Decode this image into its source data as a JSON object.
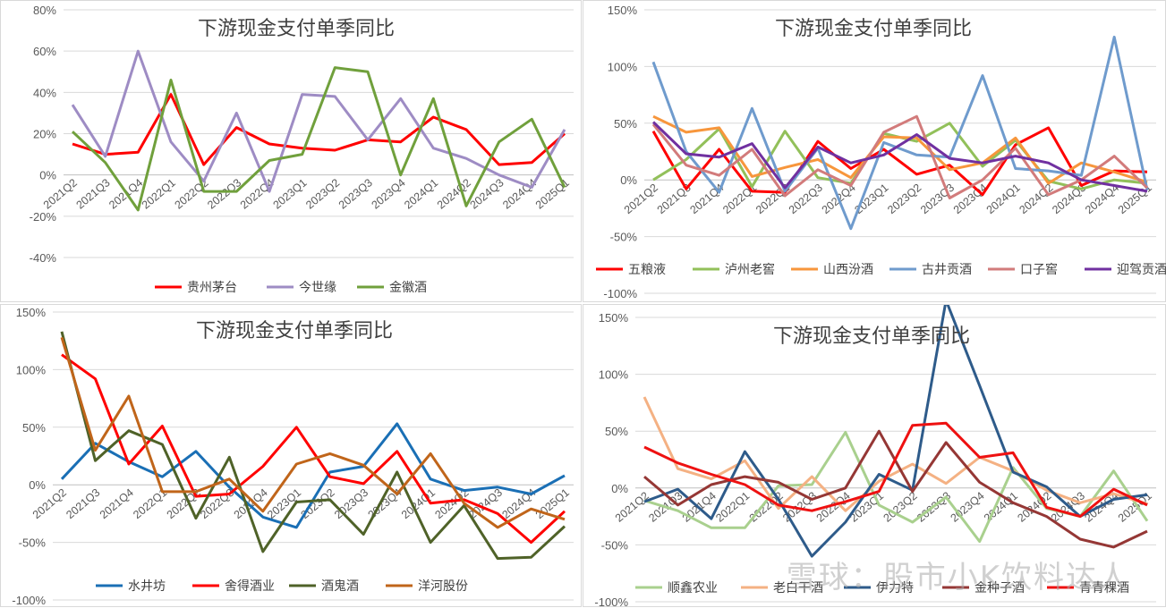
{
  "watermark": "雪球：股市小K饮料达人",
  "chart_data": [
    {
      "type": "line",
      "title": "下游现金支付单季同比",
      "categories": [
        "2021Q2",
        "2021Q3",
        "2021Q4",
        "2022Q1",
        "2022Q2",
        "2022Q3",
        "2022Q4",
        "2023Q1",
        "2023Q2",
        "2023Q3",
        "2023Q4",
        "2024Q1",
        "2024Q2",
        "2024Q3",
        "2024Q4",
        "2025Q1"
      ],
      "ylim": [
        -40,
        80
      ],
      "yticks": [
        -40,
        -20,
        0,
        20,
        40,
        60,
        80
      ],
      "grid": true,
      "legend_position": "bottom",
      "series": [
        {
          "name": "贵州茅台",
          "color": "#ff0000",
          "values": [
            15,
            10,
            11,
            39,
            5,
            23,
            15,
            13,
            12,
            17,
            16,
            28,
            22,
            5,
            6,
            20
          ]
        },
        {
          "name": "今世缘",
          "color": "#9e8cc4",
          "values": [
            34,
            9,
            60,
            16,
            -3,
            30,
            -8,
            39,
            38,
            17,
            37,
            13,
            8,
            0,
            -6,
            22
          ]
        },
        {
          "name": "金徽酒",
          "color": "#70a03c",
          "values": [
            21,
            6,
            -17,
            46,
            -8,
            -8,
            7,
            10,
            52,
            50,
            0,
            37,
            -15,
            16,
            27,
            -6
          ]
        }
      ]
    },
    {
      "type": "line",
      "title": "下游现金支付单季同比",
      "categories": [
        "2021Q2",
        "2021Q3",
        "2021Q4",
        "2022Q1",
        "2022Q2",
        "2022Q3",
        "2022Q4",
        "2023Q1",
        "2023Q2",
        "2023Q3",
        "2023Q4",
        "2024Q1",
        "2024Q2",
        "2024Q3",
        "2024Q4",
        "2025Q1"
      ],
      "ylim": [
        -100,
        150
      ],
      "yticks": [
        -100,
        -50,
        0,
        50,
        100,
        150
      ],
      "grid": true,
      "legend_position": "bottom",
      "series": [
        {
          "name": "五粮液",
          "color": "#ff0000",
          "values": [
            43,
            -8,
            27,
            -10,
            -11,
            34,
            10,
            27,
            5,
            13,
            -13,
            31,
            46,
            -5,
            8,
            7
          ]
        },
        {
          "name": "泸州老窖",
          "color": "#92c05a",
          "values": [
            0,
            18,
            45,
            -6,
            43,
            2,
            -3,
            41,
            34,
            50,
            12,
            35,
            -1,
            -8,
            0,
            -3
          ]
        },
        {
          "name": "山西汾酒",
          "color": "#f7963c",
          "values": [
            56,
            42,
            46,
            3,
            11,
            18,
            2,
            38,
            37,
            9,
            15,
            37,
            -3,
            15,
            7,
            -2
          ]
        },
        {
          "name": "古井贡酒",
          "color": "#6f9bcd",
          "values": [
            104,
            25,
            -11,
            63,
            -10,
            28,
            -43,
            33,
            22,
            20,
            92,
            10,
            8,
            4,
            126,
            -9
          ]
        },
        {
          "name": "口子窖",
          "color": "#d27b7b",
          "values": [
            49,
            13,
            4,
            27,
            -14,
            9,
            -5,
            42,
            56,
            -16,
            0,
            28,
            -13,
            0,
            21,
            -7
          ]
        },
        {
          "name": "迎驾贡酒",
          "color": "#7030a0",
          "values": [
            51,
            23,
            20,
            32,
            -7,
            29,
            15,
            22,
            40,
            19,
            15,
            21,
            15,
            0,
            -5,
            -10
          ]
        }
      ]
    },
    {
      "type": "line",
      "title": "下游现金支付单季同比",
      "categories": [
        "2021Q2",
        "2021Q3",
        "2021Q4",
        "2022Q1",
        "2022Q2",
        "2022Q3",
        "2022Q4",
        "2023Q1",
        "2023Q2",
        "2023Q3",
        "2023Q4",
        "2024Q1",
        "2024Q2",
        "2024Q3",
        "2024Q4",
        "2025Q1"
      ],
      "ylim": [
        -100,
        150
      ],
      "yticks": [
        -100,
        -50,
        0,
        50,
        100,
        150
      ],
      "grid": true,
      "legend_position": "bottom",
      "series": [
        {
          "name": "水井坊",
          "color": "#1a6fb5",
          "values": [
            5,
            36,
            20,
            7,
            29,
            -2,
            -28,
            -37,
            11,
            16,
            53,
            5,
            -5,
            -2,
            -8,
            8
          ]
        },
        {
          "name": "舍得酒业",
          "color": "#ff0000",
          "values": [
            113,
            92,
            18,
            51,
            -10,
            -8,
            16,
            50,
            7,
            1,
            29,
            -16,
            -13,
            -25,
            -50,
            -23
          ]
        },
        {
          "name": "酒鬼酒",
          "color": "#4f6228",
          "values": [
            133,
            21,
            47,
            35,
            -29,
            24,
            -58,
            -15,
            -13,
            -43,
            11,
            -50,
            -18,
            -64,
            -63,
            -36
          ]
        },
        {
          "name": "洋河股份",
          "color": "#c0651a",
          "values": [
            128,
            30,
            77,
            -6,
            -6,
            5,
            -23,
            18,
            27,
            17,
            -8,
            27,
            -16,
            -37,
            -21,
            -30
          ]
        }
      ]
    },
    {
      "type": "line",
      "title": "下游现金支付单季同比",
      "categories": [
        "2021Q2",
        "2021Q3",
        "2021Q4",
        "2022Q1",
        "2022Q2",
        "2022Q3",
        "2022Q4",
        "2023Q1",
        "2023Q2",
        "2023Q3",
        "2023Q4",
        "2024Q1",
        "2024Q2",
        "2024Q3",
        "2024Q4",
        "2025Q1"
      ],
      "ylim": [
        -100,
        150
      ],
      "yticks": [
        -100,
        -50,
        0,
        50,
        100,
        150
      ],
      "grid": true,
      "legend_position": "bottom",
      "series": [
        {
          "name": "顺鑫农业",
          "color": "#a9d08e",
          "values": [
            -11,
            -20,
            -35,
            -35,
            2,
            3,
            49,
            -15,
            -30,
            -8,
            -47,
            18,
            -18,
            -25,
            15,
            -29
          ]
        },
        {
          "name": "老白干酒",
          "color": "#f4b183",
          "values": [
            80,
            17,
            8,
            24,
            -18,
            10,
            -20,
            6,
            21,
            4,
            27,
            15,
            -2,
            -13,
            -5,
            -14
          ]
        },
        {
          "name": "伊力特",
          "color": "#2e5b8a",
          "values": [
            -12,
            -1,
            -27,
            32,
            -10,
            -60,
            -30,
            12,
            -2,
            165,
            90,
            14,
            1,
            -25,
            -10,
            -6
          ]
        },
        {
          "name": "金种子酒",
          "color": "#953735",
          "values": [
            10,
            -15,
            3,
            10,
            5,
            -10,
            0,
            50,
            -3,
            40,
            5,
            -13,
            -25,
            -45,
            -52,
            -38
          ]
        },
        {
          "name": "青青稞酒",
          "color": "#ee1111",
          "values": [
            36,
            22,
            12,
            3,
            -15,
            -20,
            -12,
            -3,
            55,
            57,
            27,
            31,
            -17,
            -25,
            -1,
            -15
          ]
        }
      ]
    }
  ]
}
